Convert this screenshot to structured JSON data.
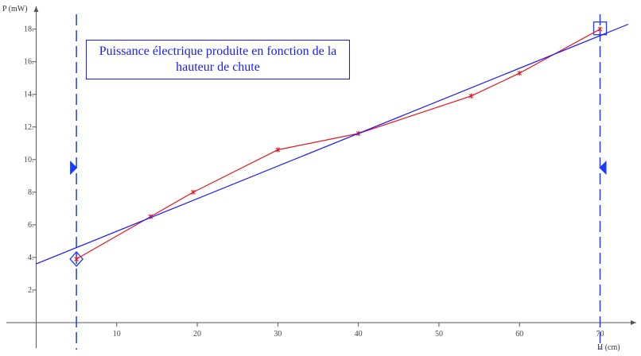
{
  "chart_data": {
    "type": "line",
    "title_lines": [
      "Puissance électrique produite en fonction de la",
      "hauteur de chute"
    ],
    "xlabel": "H (cm)",
    "ylabel": "P (mW)",
    "xlim": [
      -3.5,
      73.5
    ],
    "ylim": [
      0,
      19.3
    ],
    "x_ticks": [
      10,
      20,
      30,
      40,
      50,
      60,
      70
    ],
    "y_ticks": [
      2,
      4,
      6,
      8,
      10,
      12,
      14,
      16,
      18
    ],
    "grid": false,
    "series": [
      {
        "kind": "measurements",
        "color": "#e8141e",
        "x": [
          5,
          14.2,
          19.5,
          30,
          40,
          54,
          60,
          70
        ],
        "y": [
          3.9,
          6.5,
          8.0,
          10.6,
          11.6,
          13.9,
          15.3,
          18.0
        ]
      },
      {
        "kind": "linear-fit",
        "color": "#1a1aff",
        "x": [
          0,
          73.5
        ],
        "y": [
          3.6,
          18.3
        ]
      }
    ],
    "cursors": [
      {
        "x": 5,
        "marker": "diamond",
        "marker_y": 3.9,
        "pointer": "right",
        "pointer_y": 9.5
      },
      {
        "x": 70,
        "marker": "square",
        "marker_y": 18.0,
        "pointer": "left",
        "pointer_y": 9.5
      }
    ]
  },
  "colors": {
    "axis": "#555555",
    "cursor": "#1a3cff",
    "title": "#1a1aff"
  }
}
